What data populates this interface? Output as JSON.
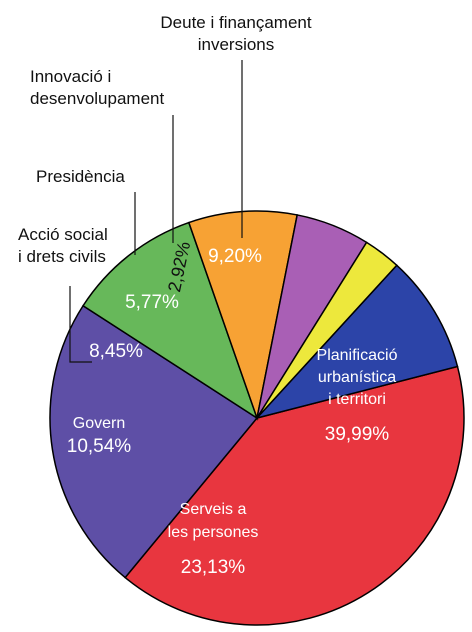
{
  "chart_data": {
    "type": "pie",
    "title": "",
    "slices": [
      {
        "name": "Planificació urbanística i territori",
        "label_lines": [
          "Planificació",
          "urbanística",
          "i territori"
        ],
        "value": 39.99,
        "value_label": "39,99%",
        "color": "#e8363f",
        "label_inside": true
      },
      {
        "name": "Serveis a les persones",
        "label_lines": [
          "Serveis a",
          "les persones"
        ],
        "value": 23.13,
        "value_label": "23,13%",
        "color": "#5e4fa6",
        "label_inside": true
      },
      {
        "name": "Govern",
        "label_lines": [
          "Govern"
        ],
        "value": 10.54,
        "value_label": "10,54%",
        "color": "#67b85a",
        "label_inside": true
      },
      {
        "name": "Acció social i drets civils",
        "label_lines": [
          "Acció social",
          "i drets civils"
        ],
        "value": 8.45,
        "value_label": "8,45%",
        "color": "#f7a234",
        "label_inside": false
      },
      {
        "name": "Presidència",
        "label_lines": [
          "Presidència"
        ],
        "value": 5.77,
        "value_label": "5,77%",
        "color": "#a95fb5",
        "label_inside": false
      },
      {
        "name": "Innovació i desenvolupament",
        "label_lines": [
          "Innovació i",
          "desenvolupament"
        ],
        "value": 2.92,
        "value_label": "2,92%",
        "color": "#ede83c",
        "label_inside": false
      },
      {
        "name": "Deute i finançament inversions",
        "label_lines": [
          "Deute i finançament",
          "inversions"
        ],
        "value": 9.2,
        "value_label": "9,20%",
        "color": "#2c44a8",
        "label_inside": false
      }
    ]
  }
}
